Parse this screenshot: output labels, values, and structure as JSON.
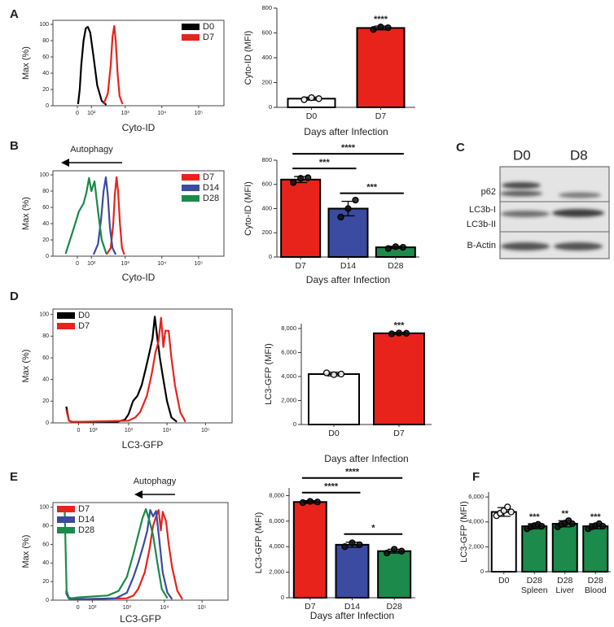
{
  "chart_data": [
    {
      "type": "hist",
      "panel": "A",
      "ylabel": "Max (%)",
      "xlabel": "Cyto-ID",
      "xscale": "asinh",
      "xlim": [
        -220,
        490000
      ],
      "xticks": [
        0,
        {
          "value": 100,
          "label": "10²"
        },
        {
          "value": 1000,
          "label": "10³"
        },
        {
          "value": 10000,
          "label": "10⁴"
        },
        {
          "value": 100000,
          "label": "10⁵"
        }
      ],
      "ylim": [
        0,
        105
      ],
      "yticks": [
        0,
        20,
        40,
        60,
        80,
        100
      ],
      "legend": "upper right",
      "series": [
        {
          "name": "D0",
          "color": "#000000",
          "x": [
            5,
            15,
            25,
            40,
            55,
            70,
            90,
            120,
            160,
            220,
            300
          ],
          "values": [
            2,
            20,
            50,
            80,
            95,
            97,
            90,
            60,
            25,
            6,
            1
          ]
        },
        {
          "name": "D7",
          "color": "#e8231c",
          "x": [
            250,
            330,
            400,
            450,
            500,
            550,
            620,
            700,
            850
          ],
          "values": [
            2,
            15,
            50,
            85,
            98,
            80,
            40,
            12,
            2
          ]
        }
      ]
    },
    {
      "type": "bar",
      "ylabel": "Cyto-ID (MFI)",
      "xlabel": "Days after Infection",
      "categories": [
        "D0",
        "D7"
      ],
      "values": [
        70,
        640
      ],
      "errors": [
        12,
        15
      ],
      "colors": [
        "#ffffff",
        "#e8231c"
      ],
      "points": [
        [
          62,
          78,
          70
        ],
        [
          628,
          648,
          642
        ]
      ],
      "ylim": [
        0,
        800
      ],
      "yticks": [
        0,
        200,
        400,
        600,
        800
      ],
      "significance": [
        {
          "text": "****",
          "bars": [
            1
          ]
        }
      ]
    },
    {
      "type": "hist",
      "panel": "B",
      "annotation": "Autophagy",
      "ylabel": "Max (%)",
      "xlabel": "Cyto-ID",
      "xscale": "asinh",
      "xlim": [
        -220,
        490000
      ],
      "xticks": [
        0,
        {
          "value": 100,
          "label": "10²"
        },
        {
          "value": 1000,
          "label": "10³"
        },
        {
          "value": 10000,
          "label": "10⁴"
        },
        {
          "value": 100000,
          "label": "10⁵"
        }
      ],
      "ylim": [
        0,
        105
      ],
      "yticks": [
        0,
        20,
        40,
        60,
        80,
        100
      ],
      "legend": "upper right",
      "series": [
        {
          "name": "D7",
          "color": "#e8231c",
          "x": [
            300,
            400,
            470,
            520,
            580,
            640,
            720,
            820,
            950
          ],
          "values": [
            2,
            10,
            40,
            75,
            97,
            80,
            40,
            10,
            2
          ]
        },
        {
          "name": "D14",
          "color": "#3b4ba0",
          "x": [
            120,
            170,
            210,
            250,
            290,
            330,
            380,
            450,
            550
          ],
          "values": [
            2,
            15,
            45,
            80,
            97,
            75,
            35,
            10,
            2
          ]
        },
        {
          "name": "D28",
          "color": "#1b8a4a",
          "x": [
            -80,
            -30,
            10,
            40,
            60,
            80,
            100,
            130,
            170,
            220,
            300
          ],
          "values": [
            3,
            30,
            55,
            65,
            78,
            96,
            80,
            92,
            55,
            20,
            3
          ]
        }
      ]
    },
    {
      "type": "bar",
      "ylabel": "Cyto-ID (MFI)",
      "xlabel": "Days after Infection",
      "categories": [
        "D7",
        "D14",
        "D28"
      ],
      "values": [
        640,
        400,
        80
      ],
      "errors": [
        25,
        60,
        8
      ],
      "colors": [
        "#e8231c",
        "#3b4ba0",
        "#1b8a4a"
      ],
      "points": [
        [
          615,
          650,
          655
        ],
        [
          330,
          400,
          470
        ],
        [
          70,
          85,
          80
        ]
      ],
      "ylim": [
        0,
        800
      ],
      "yticks": [
        0,
        200,
        400,
        600,
        800
      ],
      "significance": [
        {
          "text": "***",
          "bars": [
            0,
            1
          ]
        },
        {
          "text": "****",
          "bars": [
            0,
            2
          ]
        },
        {
          "text": "***",
          "bars": [
            1,
            2
          ]
        }
      ]
    },
    {
      "type": "blot",
      "panel": "C",
      "lanes": [
        "D0",
        "D8"
      ],
      "bands": [
        "p62",
        "LC3b-I",
        "LC3b-II",
        "B-Actin"
      ]
    },
    {
      "type": "hist",
      "panel": "D",
      "ylabel": "Max (%)",
      "xlabel": "LC3-GFP",
      "xscale": "asinh",
      "xlim": [
        -220,
        490000
      ],
      "xticks": [
        0,
        {
          "value": 100,
          "label": "10²"
        },
        {
          "value": 1000,
          "label": "10³"
        },
        {
          "value": 10000,
          "label": "10⁴"
        },
        {
          "value": 100000,
          "label": "10⁵"
        }
      ],
      "ylim": [
        0,
        105
      ],
      "yticks": [
        0,
        20,
        40,
        60,
        80,
        100
      ],
      "legend": "upper left",
      "series": [
        {
          "name": "D0",
          "color": "#000000",
          "x": [
            -80,
            -60,
            -40,
            0,
            200,
            500,
            800,
            1000,
            1300,
            1700,
            2200,
            2800,
            3500,
            4200,
            4800,
            5500,
            6500,
            8000,
            10000,
            13000,
            18000
          ],
          "values": [
            15,
            2,
            1,
            1,
            1,
            1,
            3,
            8,
            20,
            25,
            35,
            50,
            65,
            78,
            98,
            80,
            60,
            40,
            20,
            5,
            1
          ]
        },
        {
          "name": "D7",
          "color": "#e8231c",
          "x": [
            -80,
            -60,
            -40,
            0,
            1000,
            1500,
            2000,
            3000,
            4000,
            5000,
            6000,
            7000,
            8000,
            9000,
            11000,
            13000,
            16000,
            22000,
            30000
          ],
          "values": [
            12,
            2,
            1,
            1,
            2,
            5,
            10,
            25,
            45,
            65,
            75,
            97,
            70,
            85,
            85,
            60,
            35,
            10,
            1
          ]
        }
      ]
    },
    {
      "type": "bar",
      "ylabel": "LC3-GFP (MFI)",
      "xlabel": "Days after Infection",
      "categories": [
        "D0",
        "D7"
      ],
      "values": [
        4200,
        7600
      ],
      "errors": [
        150,
        80
      ],
      "colors": [
        "#ffffff",
        "#e8231c"
      ],
      "points": [
        [
          4300,
          4150,
          4200
        ],
        [
          7550,
          7620,
          7600
        ]
      ],
      "ylim": [
        0,
        8400
      ],
      "yticks": [
        0,
        {
          "value": 2000,
          "label": "2,000"
        },
        {
          "value": 4000,
          "label": "4,000"
        },
        {
          "value": 6000,
          "label": "6,000"
        },
        {
          "value": 8000,
          "label": "8,000"
        }
      ],
      "significance": [
        {
          "text": "***",
          "bars": [
            1
          ]
        }
      ]
    },
    {
      "type": "hist",
      "panel": "E",
      "annotation": "Autophagy",
      "ylabel": "Max (%)",
      "xlabel": "LC3-GFP",
      "xscale": "asinh",
      "xlim": [
        -220,
        490000
      ],
      "xticks": [
        0,
        {
          "value": 100,
          "label": "10²"
        },
        {
          "value": 1000,
          "label": "10³"
        },
        {
          "value": 10000,
          "label": "10⁴"
        },
        {
          "value": 100000,
          "label": "10⁵"
        }
      ],
      "ylim": [
        0,
        105
      ],
      "yticks": [
        0,
        20,
        40,
        60,
        80,
        100
      ],
      "legend": "upper left",
      "series": [
        {
          "name": "D7",
          "color": "#e8231c",
          "x": [
            -80,
            -60,
            -40,
            0,
            1000,
            1500,
            2000,
            3000,
            4000,
            5000,
            6000,
            7000,
            8000,
            9000,
            11000,
            13000,
            16000,
            22000,
            30000
          ],
          "values": [
            10,
            2,
            1,
            1,
            2,
            5,
            12,
            30,
            55,
            80,
            90,
            97,
            75,
            95,
            85,
            60,
            35,
            10,
            1
          ]
        },
        {
          "name": "D14",
          "color": "#3b4ba0",
          "x": [
            -80,
            -60,
            -40,
            0,
            500,
            1000,
            1500,
            2000,
            2800,
            3500,
            4200,
            5000,
            6000,
            7500,
            9000,
            12000,
            16000
          ],
          "values": [
            8,
            2,
            1,
            1,
            2,
            8,
            25,
            40,
            60,
            75,
            97,
            90,
            96,
            60,
            30,
            8,
            1
          ]
        },
        {
          "name": "D28",
          "color": "#1b8a4a",
          "x": [
            -90,
            -75,
            -60,
            -40,
            0,
            300,
            600,
            1000,
            1500,
            2000,
            2600,
            3200,
            4000,
            5000,
            6500,
            8500,
            12000
          ],
          "values": [
            95,
            10,
            3,
            2,
            3,
            5,
            10,
            25,
            50,
            70,
            88,
            98,
            85,
            70,
            40,
            12,
            2
          ]
        }
      ]
    },
    {
      "type": "bar",
      "ylabel": "LC3-GFP (MFI)",
      "xlabel": "Days after Infection",
      "categories": [
        "D7",
        "D14",
        "D28"
      ],
      "values": [
        7500,
        4150,
        3650
      ],
      "errors": [
        100,
        200,
        150
      ],
      "colors": [
        "#e8231c",
        "#3b4ba0",
        "#1b8a4a"
      ],
      "points": [
        [
          7450,
          7550,
          7500
        ],
        [
          4000,
          4300,
          4150
        ],
        [
          3500,
          3800,
          3650
        ]
      ],
      "ylim": [
        0,
        8600
      ],
      "yticks": [
        0,
        {
          "value": 2000,
          "label": "2,000"
        },
        {
          "value": 4000,
          "label": "4,000"
        },
        {
          "value": 6000,
          "label": "6,000"
        },
        {
          "value": 8000,
          "label": "8,000"
        }
      ],
      "significance": [
        {
          "text": "****",
          "bars": [
            0,
            1
          ]
        },
        {
          "text": "****",
          "bars": [
            0,
            2
          ]
        },
        {
          "text": "*",
          "bars": [
            1,
            2
          ]
        }
      ]
    },
    {
      "type": "bar",
      "panel": "F",
      "ylabel": "LC3-GFP (MFI)",
      "categories": [
        [
          "D0"
        ],
        [
          "D28",
          "Spleen"
        ],
        [
          "D28",
          "Liver"
        ],
        [
          "D28",
          "Blood"
        ]
      ],
      "values": [
        4800,
        3650,
        3850,
        3650
      ],
      "errors": [
        350,
        200,
        250,
        200
      ],
      "colors": [
        "#ffffff",
        "#1b8a4a",
        "#1b8a4a",
        "#1b8a4a"
      ],
      "points": [
        [
          4500,
          4700,
          4900,
          5200,
          4800
        ],
        [
          3450,
          3600,
          3700,
          3800,
          3650
        ],
        [
          3600,
          3800,
          3900,
          4100,
          3850
        ],
        [
          3450,
          3600,
          3700,
          3850,
          3650
        ]
      ],
      "ylim": [
        0,
        6400
      ],
      "yticks": [
        0,
        {
          "value": 2000,
          "label": "2,000"
        },
        {
          "value": 4000,
          "label": "4,000"
        },
        {
          "value": 6000,
          "label": "6,000"
        }
      ],
      "significance": [
        {
          "text": "***",
          "bars": [
            1
          ]
        },
        {
          "text": "**",
          "bars": [
            2
          ]
        },
        {
          "text": "***",
          "bars": [
            3
          ]
        }
      ]
    }
  ]
}
